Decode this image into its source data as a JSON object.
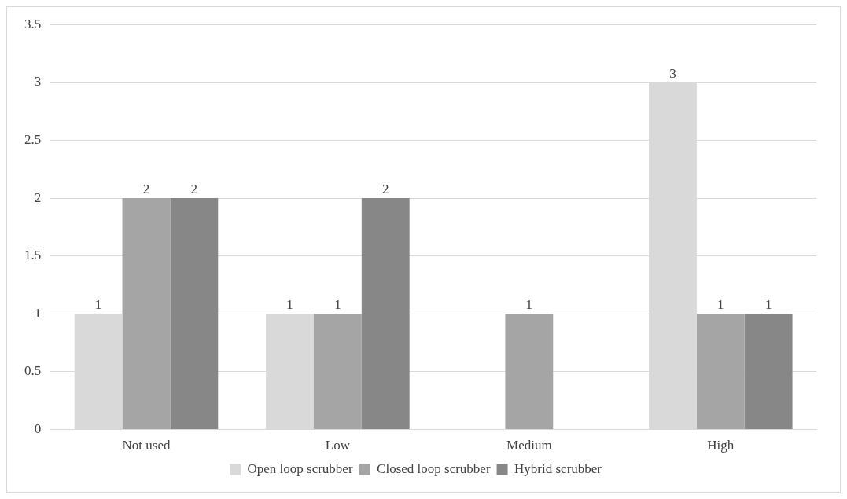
{
  "chart_data": {
    "type": "bar",
    "categories": [
      "Not used",
      "Low",
      "Medium",
      "High"
    ],
    "series": [
      {
        "name": "Open loop scrubber",
        "color": "#d9d9d9",
        "values": [
          1,
          1,
          0,
          3
        ],
        "value_labels": [
          "1",
          "1",
          null,
          "3"
        ]
      },
      {
        "name": "Closed loop scrubber",
        "color": "#a5a5a5",
        "values": [
          2,
          1,
          1,
          1
        ],
        "value_labels": [
          "2",
          "1",
          "1",
          "1"
        ]
      },
      {
        "name": "Hybrid scrubber",
        "color": "#878787",
        "values": [
          2,
          2,
          0,
          1
        ],
        "value_labels": [
          "2",
          "2",
          null,
          "1"
        ]
      }
    ],
    "ylim": [
      0,
      3.5
    ],
    "yticks": [
      0,
      0.5,
      1,
      1.5,
      2,
      2.5,
      3,
      3.5
    ],
    "grid": "y",
    "legend": "bottom"
  }
}
